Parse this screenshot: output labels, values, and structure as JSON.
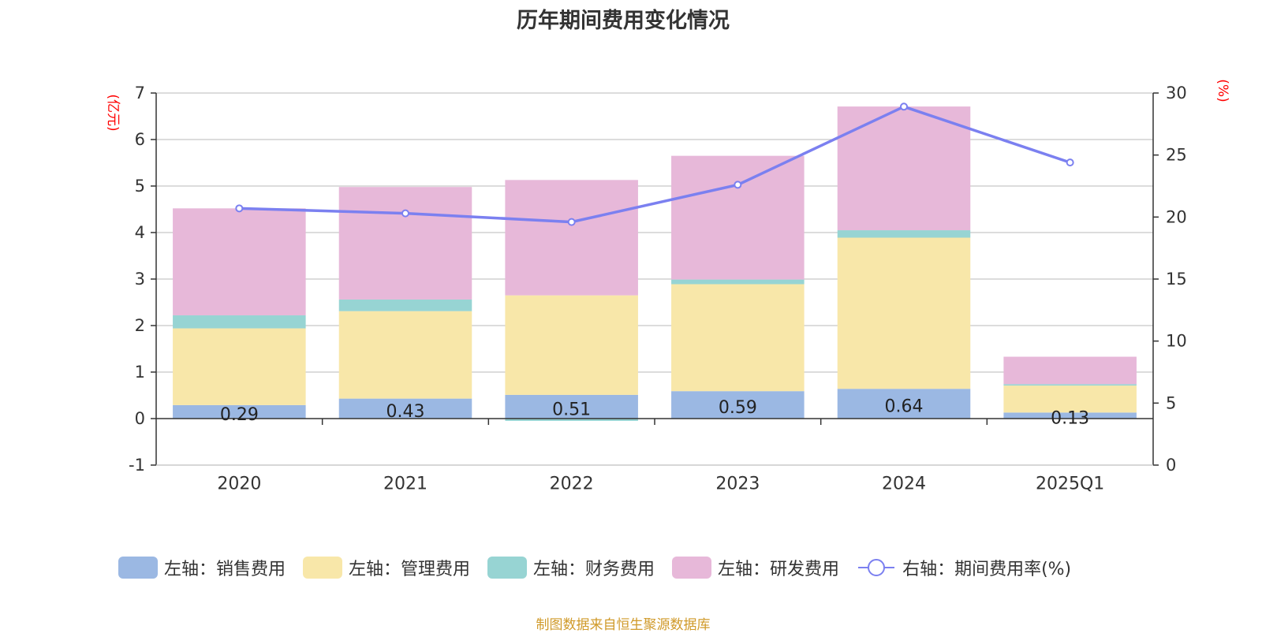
{
  "title": "历年期间费用变化情况",
  "footer": "制图数据来自恒生聚源数据库",
  "colors": {
    "sales": "#9bb8e3",
    "admin": "#f8e7a9",
    "finance": "#97d4d3",
    "rd": "#e7b8d9",
    "rate": "#7b80f0",
    "axis_unit": "#ff0000"
  },
  "chart_data": {
    "type": "bar",
    "stacked": true,
    "title": "历年期间费用变化情况",
    "categories": [
      "2020",
      "2021",
      "2022",
      "2023",
      "2024",
      "2025Q1"
    ],
    "left_axis": {
      "unit_label": "(亿元)",
      "ylim": [
        -1,
        7
      ],
      "ticks": [
        "-1",
        "0",
        "1",
        "2",
        "3",
        "4",
        "5",
        "6",
        "7"
      ]
    },
    "right_axis": {
      "unit_label": "(%)",
      "ylim": [
        0,
        30
      ],
      "ticks": [
        "0",
        "5",
        "10",
        "15",
        "20",
        "25",
        "30"
      ]
    },
    "series": [
      {
        "key": "sales",
        "name": "左轴：销售费用",
        "axis": "left",
        "values": [
          0.29,
          0.43,
          0.51,
          0.59,
          0.64,
          0.13
        ],
        "labels": [
          "0.29",
          "0.43",
          "0.51",
          "0.59",
          "0.64",
          "0.13"
        ]
      },
      {
        "key": "admin",
        "name": "左轴：管理费用",
        "axis": "left",
        "values": [
          1.65,
          1.88,
          2.14,
          2.3,
          3.25,
          0.58
        ]
      },
      {
        "key": "finance",
        "name": "左轴：财务费用",
        "axis": "left",
        "values": [
          0.28,
          0.25,
          -0.05,
          0.1,
          0.16,
          0.03
        ]
      },
      {
        "key": "rd",
        "name": "左轴：研发费用",
        "axis": "left",
        "values": [
          2.3,
          2.42,
          2.48,
          2.66,
          2.66,
          0.59
        ]
      },
      {
        "key": "rate",
        "name": "右轴：期间费用率(%)",
        "axis": "right",
        "type": "line",
        "values": [
          20.7,
          20.3,
          19.6,
          22.6,
          28.9,
          24.4
        ]
      }
    ],
    "grid": true,
    "legend_position": "bottom"
  }
}
